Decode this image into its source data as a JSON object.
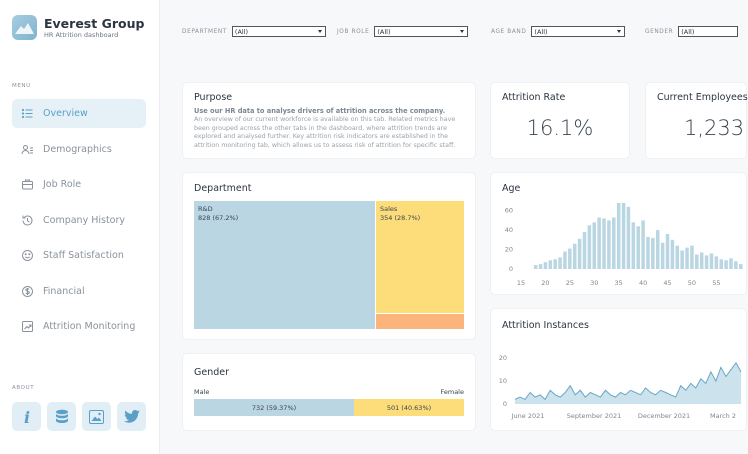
{
  "brand": {
    "name": "Everest Group",
    "subtitle": "HR Attrition dashboard"
  },
  "sidebar": {
    "menu_label": "MENU",
    "about_label": "ABOUT",
    "items": [
      {
        "label": "Overview",
        "icon": "list-icon",
        "active": true
      },
      {
        "label": "Demographics",
        "icon": "people-icon",
        "active": false
      },
      {
        "label": "Job Role",
        "icon": "briefcase-icon",
        "active": false
      },
      {
        "label": "Company History",
        "icon": "history-icon",
        "active": false
      },
      {
        "label": "Staff Satisfaction",
        "icon": "smile-icon",
        "active": false
      },
      {
        "label": "Financial",
        "icon": "dollar-icon",
        "active": false
      },
      {
        "label": "Attrition Monitoring",
        "icon": "trend-icon",
        "active": false
      }
    ],
    "about_icons": [
      "info-icon",
      "database-icon",
      "image-icon",
      "twitter-icon"
    ]
  },
  "filters": [
    {
      "label": "DEPARTMENT",
      "value": "(All)"
    },
    {
      "label": "JOB ROLE",
      "value": "(All)"
    },
    {
      "label": "AGE BAND",
      "value": "(All)"
    },
    {
      "label": "GENDER",
      "value": "(All)"
    }
  ],
  "purpose": {
    "title": "Purpose",
    "subtitle": "Use our HR data to analyse drivers of attrition across the company.",
    "body": "An overview of our current workforce is available on this tab. Related metrics have been grouped across the other tabs in the dashboard, where attrition trends are explored and analysed further. Key attrition risk indicators are established in the attrition monitoring tab, which allows us to assess risk of attrition for specific staff."
  },
  "kpis": {
    "attrition_rate": {
      "title": "Attrition Rate",
      "value": "16.1%"
    },
    "current_employees": {
      "title": "Current Employees",
      "value": "1,233"
    }
  },
  "department": {
    "title": "Department",
    "rnd_label": "R&D",
    "rnd_value": "828 (67.2%)",
    "sales_label": "Sales",
    "sales_value": "354 (28.7%)",
    "colors": {
      "rnd": "#b9d6e2",
      "sales": "#fddc7a",
      "hr": "#fbb57c"
    }
  },
  "gender": {
    "title": "Gender",
    "male_label": "Male",
    "female_label": "Female",
    "male_value": "732 (59.37%)",
    "female_value": "501 (40.63%)",
    "male_fraction": 0.5937,
    "colors": {
      "male": "#b9d6e2",
      "female": "#fddc7a"
    }
  },
  "chart_data": [
    {
      "type": "bar",
      "title": "Age",
      "x_ticks": [
        15,
        20,
        25,
        30,
        35,
        40,
        45,
        50,
        55
      ],
      "y_ticks": [
        0,
        20,
        40,
        60
      ],
      "ylim": [
        0,
        70
      ],
      "x": [
        18,
        19,
        20,
        21,
        22,
        23,
        24,
        25,
        26,
        27,
        28,
        29,
        30,
        31,
        32,
        33,
        34,
        35,
        36,
        37,
        38,
        39,
        40,
        41,
        42,
        43,
        44,
        45,
        46,
        47,
        48,
        49,
        50,
        51,
        52,
        53,
        54,
        55,
        56,
        57,
        58,
        59,
        60
      ],
      "values": [
        4,
        5,
        7,
        9,
        10,
        12,
        18,
        21,
        26,
        31,
        38,
        45,
        48,
        53,
        52,
        50,
        53,
        68,
        68,
        64,
        48,
        44,
        50,
        33,
        32,
        40,
        27,
        36,
        30,
        24,
        19,
        22,
        24,
        15,
        17,
        14,
        16,
        13,
        10,
        9,
        11,
        8,
        5
      ],
      "color": "#b9d6e2"
    },
    {
      "type": "area",
      "title": "Attrition Instances",
      "x_ticks": [
        "June 2021",
        "September 2021",
        "December 2021",
        "March 2"
      ],
      "y_ticks": [
        0,
        10,
        20
      ],
      "ylim": [
        0,
        24
      ],
      "values": [
        2,
        3,
        2,
        5,
        3,
        4,
        2,
        6,
        4,
        3,
        5,
        8,
        4,
        6,
        3,
        5,
        4,
        3,
        6,
        4,
        3,
        5,
        4,
        6,
        5,
        4,
        7,
        5,
        4,
        6,
        5,
        4,
        3,
        8,
        6,
        9,
        7,
        11,
        9,
        14,
        10,
        16,
        12,
        15,
        18,
        14
      ],
      "color": "#8fbfd6"
    }
  ]
}
